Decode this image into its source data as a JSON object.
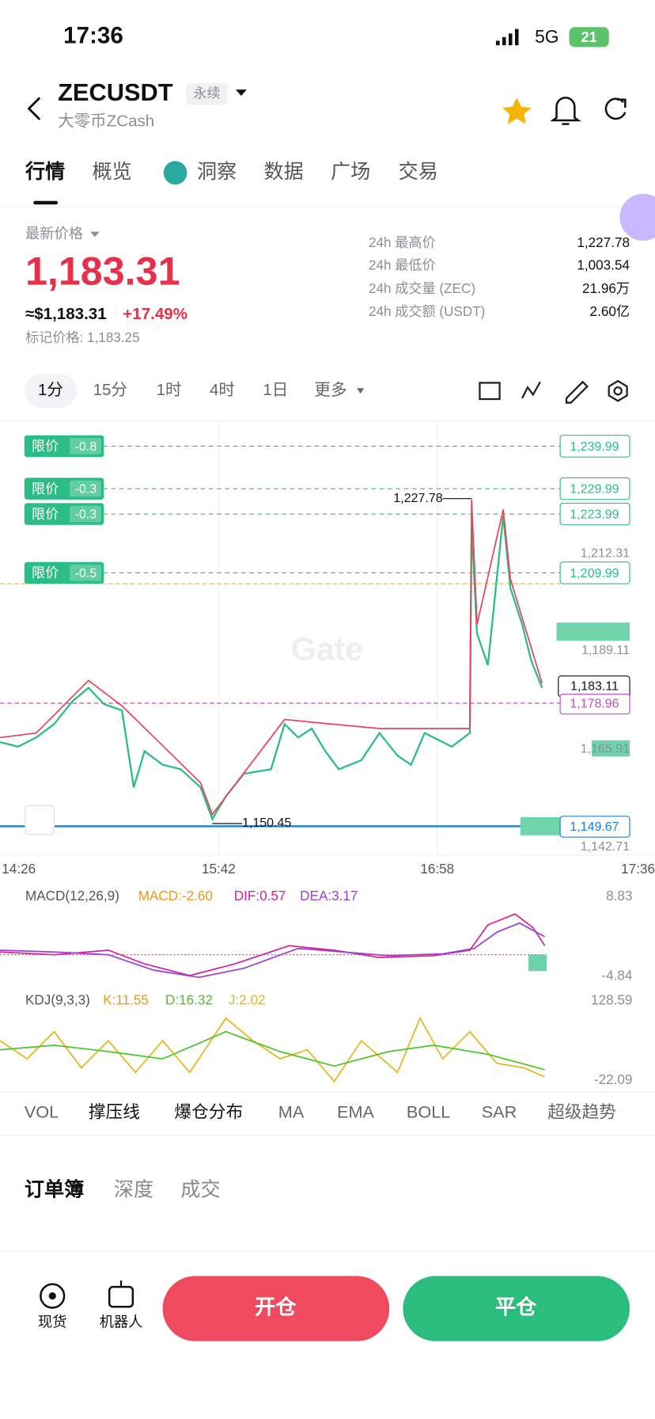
{
  "status_bar": {
    "time": "17:36",
    "network": "5G",
    "battery": "21"
  },
  "header": {
    "symbol": "ZECUSDT",
    "tag": "永续",
    "name": "大零币ZCash"
  },
  "tabs": [
    "行情",
    "概览",
    "洞察",
    "数据",
    "广场",
    "交易"
  ],
  "price": {
    "label": "最新价格",
    "last": "1,183.31",
    "usd": "≈$1,183.31",
    "change": "+17.49%",
    "mark": "标记价格: 1,183.25"
  },
  "stats": [
    {
      "label": "24h 最高价",
      "value": "1,227.78"
    },
    {
      "label": "24h 最低价",
      "value": "1,003.54"
    },
    {
      "label": "24h 成交量 (ZEC)",
      "value": "21.96万"
    },
    {
      "label": "24h 成交额 (USDT)",
      "value": "2.60亿"
    }
  ],
  "intervals": [
    "1分",
    "15分",
    "1时",
    "4时",
    "1日",
    "更多"
  ],
  "chart": {
    "orders": [
      {
        "tag": "限价",
        "qty": "-0.8",
        "price": "1,239.99"
      },
      {
        "tag": "限价",
        "qty": "-0.3",
        "price": "1,229.99"
      },
      {
        "tag": "限价",
        "qty": "-0.3",
        "price": "1,223.99"
      },
      {
        "tag": "限价",
        "qty": "-0.5",
        "price": "1,209.99"
      }
    ],
    "price_labels": [
      "1,212.31",
      "1,189.11",
      "1,165.91",
      "1,142.71"
    ],
    "high": "1,227.78",
    "low": "1,150.45",
    "current": "1,183.11",
    "alert": "1,178.96",
    "position": "1,149.67",
    "times": [
      "14:26",
      "15:42",
      "16:58",
      "17:36"
    ],
    "watermark": "Gate"
  },
  "macd": {
    "title": "MACD(12,26,9)",
    "macd": "MACD:-2.60",
    "dif": "DIF:0.57",
    "dea": "DEA:3.17",
    "max": "8.83",
    "min": "-4.84"
  },
  "kdj": {
    "title": "KDJ(9,3,3)",
    "k": "K:11.55",
    "d": "D:16.32",
    "j": "J:2.02",
    "max": "128.59",
    "min": "-22.09"
  },
  "indicators": [
    "VOL",
    "撑压线",
    "爆仓分布",
    "MA",
    "EMA",
    "BOLL",
    "SAR",
    "超级趋势"
  ],
  "book_tabs": [
    "订单簿",
    "深度",
    "成交"
  ],
  "bottom": {
    "spot": "现货",
    "robot": "机器人",
    "open": "开仓",
    "close": "平仓"
  }
}
